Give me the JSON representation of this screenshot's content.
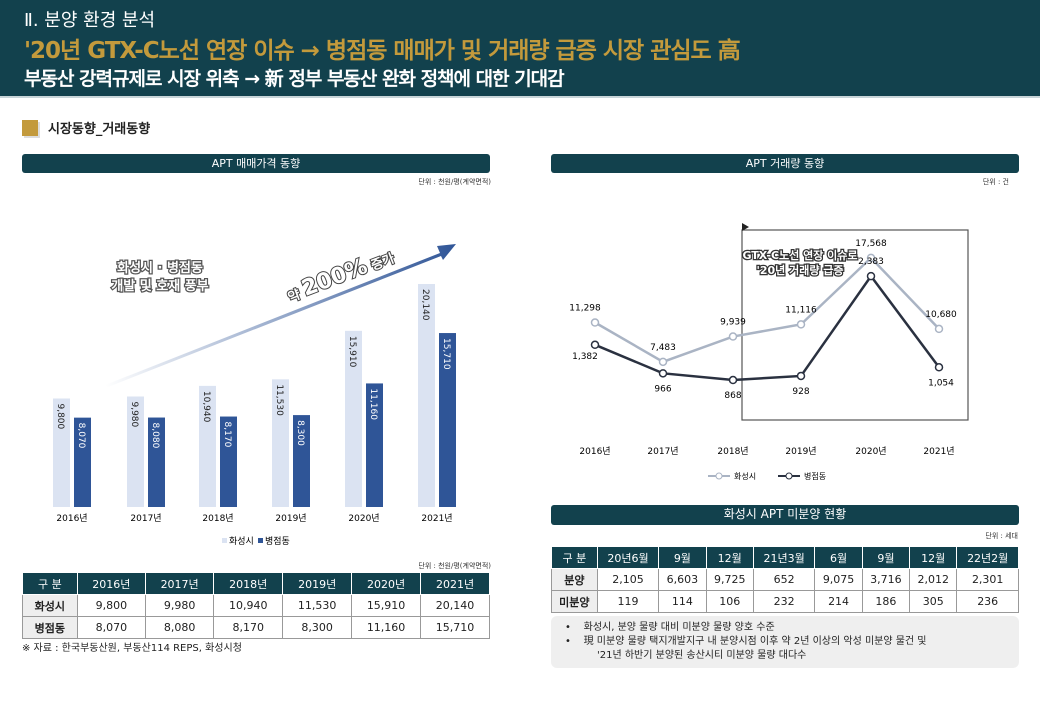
{
  "header": {
    "section": "Ⅱ. 분양 환경 분석",
    "headline": "'20년 GTX-C노선 연장 이슈 → 병점동 매매가 및 거래량 급증 시장 관심도 高",
    "subline": "부동산 강력규제로 시장 위축 → 新 정부 부동산 완화 정책에 대한 기대감"
  },
  "section_title": "시장동향_거래동향",
  "colors": {
    "header_bg": "#12414d",
    "accent": "#c39a3c",
    "hwaseong": "#dbe3f2",
    "byeongjeom": "#2f5597",
    "line_hwaseong": "#aab4c4",
    "line_byeongjeom": "#2a3140"
  },
  "price_panel": {
    "title": "APT 매매가격 동향",
    "unit": "단위 : 천원/평(계약면적)",
    "callout": "화성시 · 병점동\n개발 및 호재 풍부",
    "arrow_label_pre": "약 ",
    "arrow_label_num": "200%",
    "arrow_label_post": " 증가",
    "table_unit": "단위 : 천원/평(계약면적)",
    "source": "※ 자료 : 한국부동산원, 부동산114 REPS, 화성시청"
  },
  "volume_panel": {
    "title": "APT 거래량 동향",
    "unit": "단위 : 건",
    "callout_1": "GTX-C노선 연장 이슈로",
    "callout_2": "'20년 거래량 급증"
  },
  "chart_data": [
    {
      "type": "bar",
      "categories": [
        "2016년",
        "2017년",
        "2018년",
        "2019년",
        "2020년",
        "2021년"
      ],
      "series": [
        {
          "name": "화성시",
          "values": [
            9800,
            9980,
            10940,
            11530,
            15910,
            20140
          ]
        },
        {
          "name": "병점동",
          "values": [
            8070,
            8080,
            8170,
            8300,
            11160,
            15710
          ]
        }
      ],
      "legend": "bottom",
      "grid": false
    },
    {
      "type": "line",
      "categories": [
        "2016년",
        "2017년",
        "2018년",
        "2019년",
        "2020년",
        "2021년"
      ],
      "series": [
        {
          "name": "화성시",
          "values": [
            11298,
            7483,
            9939,
            11116,
            17568,
            10680
          ]
        },
        {
          "name": "병점동",
          "values": [
            1382,
            966,
            868,
            928,
            2383,
            1054
          ]
        }
      ],
      "legend": "bottom",
      "grid": false
    }
  ],
  "price_table": {
    "headers": [
      "구 분",
      "2016년",
      "2017년",
      "2018년",
      "2019년",
      "2020년",
      "2021년"
    ],
    "rows": [
      [
        "화성시",
        "9,800",
        "9,980",
        "10,940",
        "11,530",
        "15,910",
        "20,140"
      ],
      [
        "병점동",
        "8,070",
        "8,080",
        "8,170",
        "8,300",
        "11,160",
        "15,710"
      ]
    ]
  },
  "unsold_panel": {
    "title": "화성시 APT 미분양 현황",
    "unit": "단위 : 세대",
    "headers": [
      "구 분",
      "20년6월",
      "9월",
      "12월",
      "21년3월",
      "6월",
      "9월",
      "12월",
      "22년2월"
    ],
    "rows": [
      [
        "분양",
        "2,105",
        "6,603",
        "9,725",
        "652",
        "9,075",
        "3,716",
        "2,012",
        "2,301"
      ],
      [
        "미분양",
        "119",
        "114",
        "106",
        "232",
        "214",
        "186",
        "305",
        "236"
      ]
    ],
    "notes": [
      "화성시, 분양 물량 대비 미분양 물량 양호 수준",
      "現 미분양 물량 택지개발지구 내 분양시점 이후 약 2년 이상의 악성 미분양 물건 및",
      "'21년 하반기 분양된 송산시티 미분양 물량 대다수"
    ]
  }
}
